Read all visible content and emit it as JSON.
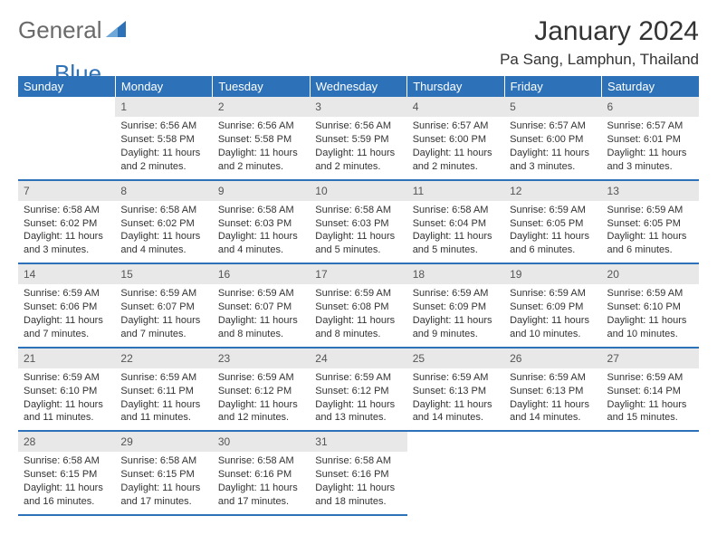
{
  "logo": {
    "general": "General",
    "blue": "Blue"
  },
  "header": {
    "monthYear": "January 2024",
    "location": "Pa Sang, Lamphun, Thailand"
  },
  "colors": {
    "headerBlue": "#2d72b8",
    "rowDivider": "#2d72b8",
    "dayNumBg": "#e8e8e8",
    "textDark": "#333333",
    "logoGray": "#6a6a6a",
    "logoBlue": "#2d72b8"
  },
  "weekdays": [
    "Sunday",
    "Monday",
    "Tuesday",
    "Wednesday",
    "Thursday",
    "Friday",
    "Saturday"
  ],
  "days": {
    "1": {
      "sunrise": "6:56 AM",
      "sunset": "5:58 PM",
      "daylight": "11 hours and 2 minutes."
    },
    "2": {
      "sunrise": "6:56 AM",
      "sunset": "5:58 PM",
      "daylight": "11 hours and 2 minutes."
    },
    "3": {
      "sunrise": "6:56 AM",
      "sunset": "5:59 PM",
      "daylight": "11 hours and 2 minutes."
    },
    "4": {
      "sunrise": "6:57 AM",
      "sunset": "6:00 PM",
      "daylight": "11 hours and 2 minutes."
    },
    "5": {
      "sunrise": "6:57 AM",
      "sunset": "6:00 PM",
      "daylight": "11 hours and 3 minutes."
    },
    "6": {
      "sunrise": "6:57 AM",
      "sunset": "6:01 PM",
      "daylight": "11 hours and 3 minutes."
    },
    "7": {
      "sunrise": "6:58 AM",
      "sunset": "6:02 PM",
      "daylight": "11 hours and 3 minutes."
    },
    "8": {
      "sunrise": "6:58 AM",
      "sunset": "6:02 PM",
      "daylight": "11 hours and 4 minutes."
    },
    "9": {
      "sunrise": "6:58 AM",
      "sunset": "6:03 PM",
      "daylight": "11 hours and 4 minutes."
    },
    "10": {
      "sunrise": "6:58 AM",
      "sunset": "6:03 PM",
      "daylight": "11 hours and 5 minutes."
    },
    "11": {
      "sunrise": "6:58 AM",
      "sunset": "6:04 PM",
      "daylight": "11 hours and 5 minutes."
    },
    "12": {
      "sunrise": "6:59 AM",
      "sunset": "6:05 PM",
      "daylight": "11 hours and 6 minutes."
    },
    "13": {
      "sunrise": "6:59 AM",
      "sunset": "6:05 PM",
      "daylight": "11 hours and 6 minutes."
    },
    "14": {
      "sunrise": "6:59 AM",
      "sunset": "6:06 PM",
      "daylight": "11 hours and 7 minutes."
    },
    "15": {
      "sunrise": "6:59 AM",
      "sunset": "6:07 PM",
      "daylight": "11 hours and 7 minutes."
    },
    "16": {
      "sunrise": "6:59 AM",
      "sunset": "6:07 PM",
      "daylight": "11 hours and 8 minutes."
    },
    "17": {
      "sunrise": "6:59 AM",
      "sunset": "6:08 PM",
      "daylight": "11 hours and 8 minutes."
    },
    "18": {
      "sunrise": "6:59 AM",
      "sunset": "6:09 PM",
      "daylight": "11 hours and 9 minutes."
    },
    "19": {
      "sunrise": "6:59 AM",
      "sunset": "6:09 PM",
      "daylight": "11 hours and 10 minutes."
    },
    "20": {
      "sunrise": "6:59 AM",
      "sunset": "6:10 PM",
      "daylight": "11 hours and 10 minutes."
    },
    "21": {
      "sunrise": "6:59 AM",
      "sunset": "6:10 PM",
      "daylight": "11 hours and 11 minutes."
    },
    "22": {
      "sunrise": "6:59 AM",
      "sunset": "6:11 PM",
      "daylight": "11 hours and 11 minutes."
    },
    "23": {
      "sunrise": "6:59 AM",
      "sunset": "6:12 PM",
      "daylight": "11 hours and 12 minutes."
    },
    "24": {
      "sunrise": "6:59 AM",
      "sunset": "6:12 PM",
      "daylight": "11 hours and 13 minutes."
    },
    "25": {
      "sunrise": "6:59 AM",
      "sunset": "6:13 PM",
      "daylight": "11 hours and 14 minutes."
    },
    "26": {
      "sunrise": "6:59 AM",
      "sunset": "6:13 PM",
      "daylight": "11 hours and 14 minutes."
    },
    "27": {
      "sunrise": "6:59 AM",
      "sunset": "6:14 PM",
      "daylight": "11 hours and 15 minutes."
    },
    "28": {
      "sunrise": "6:58 AM",
      "sunset": "6:15 PM",
      "daylight": "11 hours and 16 minutes."
    },
    "29": {
      "sunrise": "6:58 AM",
      "sunset": "6:15 PM",
      "daylight": "11 hours and 17 minutes."
    },
    "30": {
      "sunrise": "6:58 AM",
      "sunset": "6:16 PM",
      "daylight": "11 hours and 17 minutes."
    },
    "31": {
      "sunrise": "6:58 AM",
      "sunset": "6:16 PM",
      "daylight": "11 hours and 18 minutes."
    }
  },
  "labels": {
    "sunrise": "Sunrise:",
    "sunset": "Sunset:",
    "daylight": "Daylight:"
  },
  "layout": {
    "startWeekday": 1,
    "numDays": 31
  }
}
